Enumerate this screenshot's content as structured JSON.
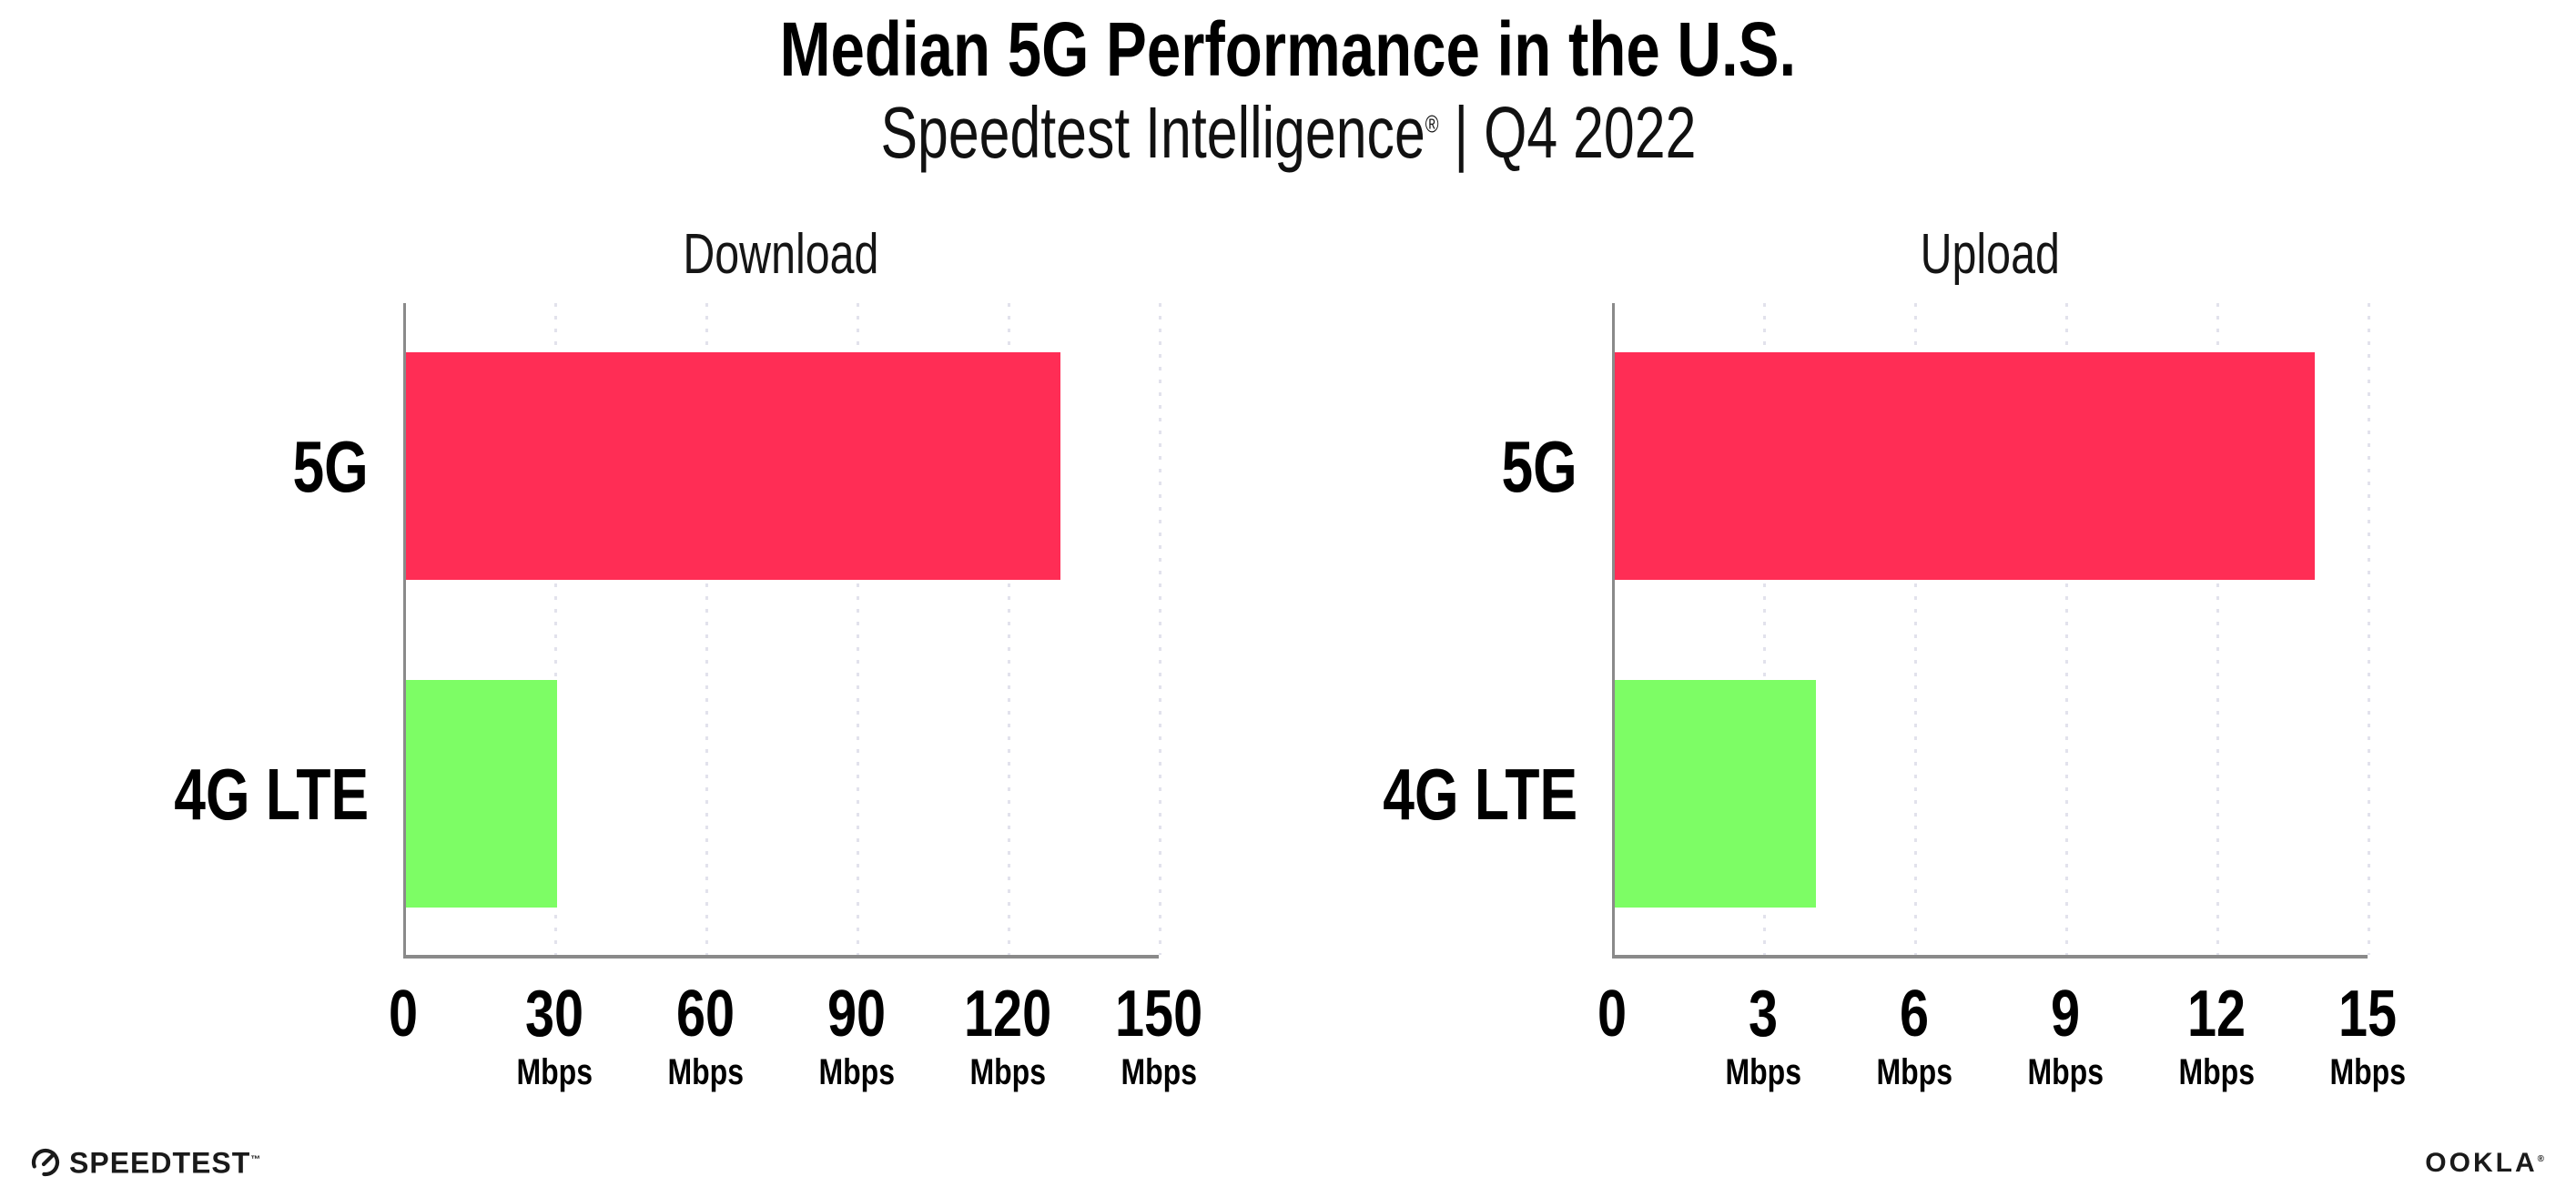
{
  "header": {
    "title": "Median 5G Performance in the U.S.",
    "subtitle_main": "Speedtest Intelligence",
    "subtitle_reg": "®",
    "subtitle_rest": " | Q4 2022"
  },
  "colors": {
    "bar_5g": "#ff2d55",
    "bar_4g_lte": "#7dfd65",
    "gridline": "#e2e2ec",
    "axis": "#8a8a8a",
    "text": "#0a0a0a"
  },
  "chart_data": [
    {
      "type": "bar",
      "orientation": "horizontal",
      "title": "Download",
      "categories": [
        "5G",
        "4G LTE"
      ],
      "values": [
        130,
        30
      ],
      "unit": "Mbps",
      "xlim": [
        0,
        150
      ],
      "xticks": [
        0,
        30,
        60,
        90,
        120,
        150
      ],
      "tick_unit_label": "Mbps",
      "bar_colors": [
        "#ff2d55",
        "#7dfd65"
      ],
      "grid": "dotted-vertical",
      "legend": "none"
    },
    {
      "type": "bar",
      "orientation": "horizontal",
      "title": "Upload",
      "categories": [
        "5G",
        "4G LTE"
      ],
      "values": [
        13.9,
        4
      ],
      "unit": "Mbps",
      "xlim": [
        0,
        15
      ],
      "xticks": [
        0,
        3,
        6,
        9,
        12,
        15
      ],
      "tick_unit_label": "Mbps",
      "bar_colors": [
        "#ff2d55",
        "#7dfd65"
      ],
      "grid": "dotted-vertical",
      "legend": "none"
    }
  ],
  "footer": {
    "speedtest_label": "SPEEDTEST",
    "speedtest_mark": "™",
    "ookla_label": "OOKLA",
    "ookla_mark": "®"
  }
}
